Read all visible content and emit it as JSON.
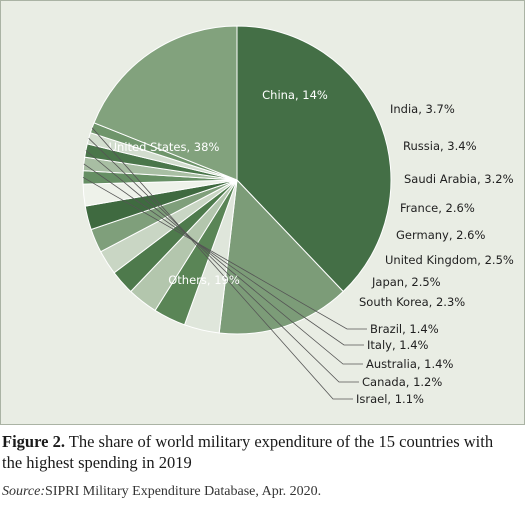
{
  "chart_data": {
    "type": "pie",
    "title": "",
    "slices": [
      {
        "label": "United States, 38%",
        "value": 38,
        "color": "#446f46"
      },
      {
        "label": "China, 14%",
        "value": 14,
        "color": "#7c9c78"
      },
      {
        "label": "India, 3.7%",
        "value": 3.7,
        "color": "#dfe6db"
      },
      {
        "label": "Russia, 3.4%",
        "value": 3.4,
        "color": "#5a8556"
      },
      {
        "label": "Saudi Arabia, 3.2%",
        "value": 3.2,
        "color": "#b3c6ad"
      },
      {
        "label": "France, 2.6%",
        "value": 2.6,
        "color": "#4e7a4c"
      },
      {
        "label": "Germany, 2.6%",
        "value": 2.6,
        "color": "#c9d6c4"
      },
      {
        "label": "United Kingdom, 2.5%",
        "value": 2.5,
        "color": "#7f9f7b"
      },
      {
        "label": "Japan, 2.5%",
        "value": 2.5,
        "color": "#3f6a40"
      },
      {
        "label": "South Korea, 2.3%",
        "value": 2.3,
        "color": "#eef2ea"
      },
      {
        "label": "Brazil, 1.4%",
        "value": 1.4,
        "color": "#668f64"
      },
      {
        "label": "Italy, 1.4%",
        "value": 1.4,
        "color": "#a8bea3"
      },
      {
        "label": "Australia, 1.4%",
        "value": 1.4,
        "color": "#4a764a"
      },
      {
        "label": "Canada, 1.2%",
        "value": 1.2,
        "color": "#d2ddce"
      },
      {
        "label": "Israel, 1.1%",
        "value": 1.1,
        "color": "#6f956b"
      },
      {
        "label": "Others, 19%",
        "value": 19,
        "color": "#82a27d"
      }
    ]
  },
  "caption": {
    "figure_label": "Figure 2.",
    "line1": "The share of world military expenditure of the 15 countries with",
    "line2": "the highest spending in 2019"
  },
  "source": {
    "label": "Source:",
    "text": "SIPRI Military Expenditure Database, Apr. 2020."
  }
}
